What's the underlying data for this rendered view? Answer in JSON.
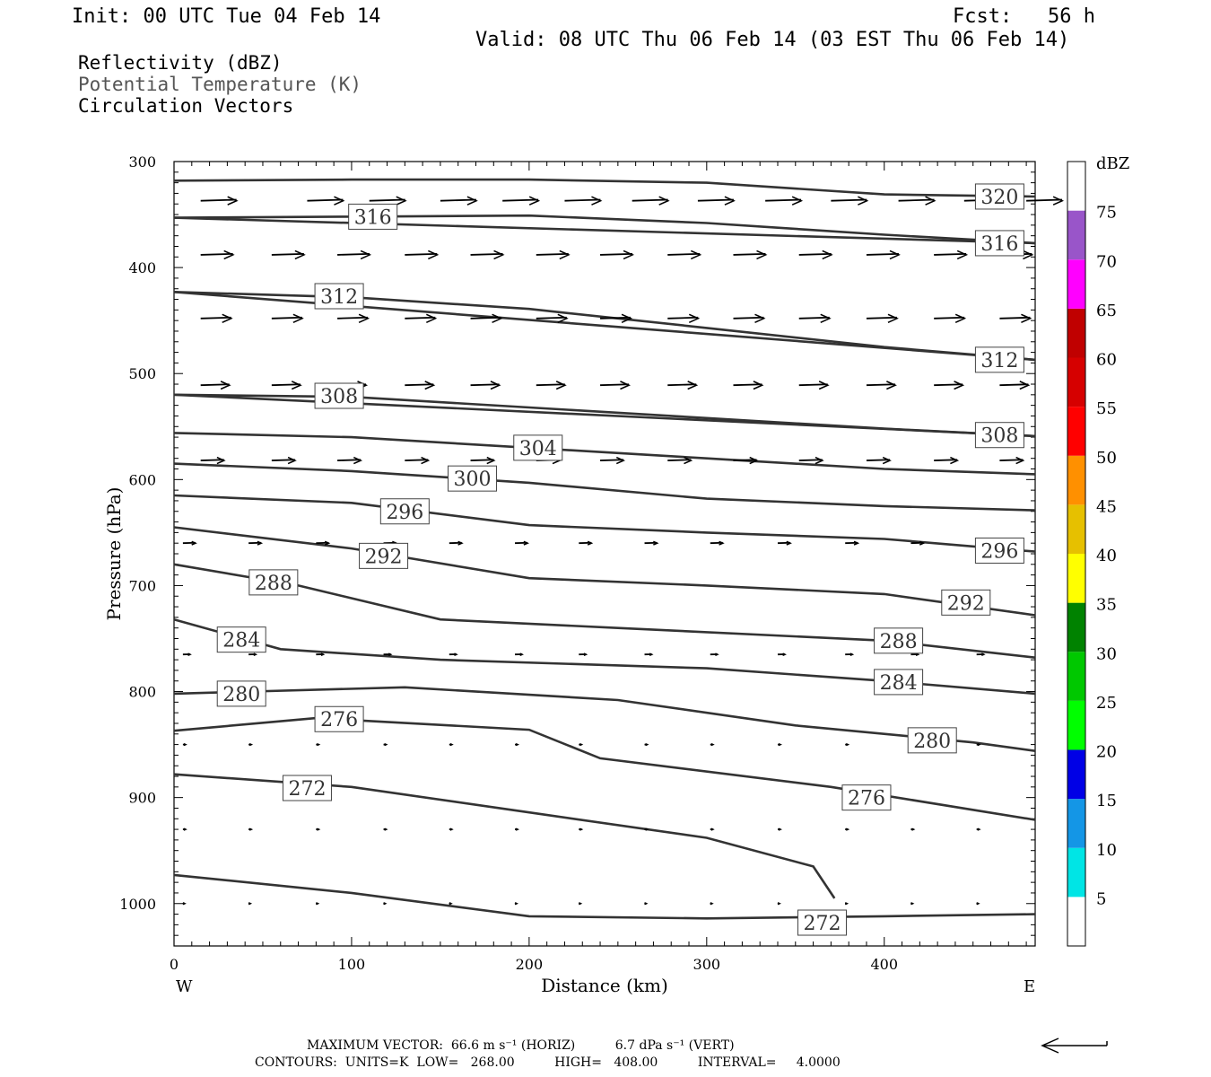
{
  "header": {
    "init": "Init: 00 UTC Tue 04 Feb 14",
    "fcst": "Fcst:   56 h",
    "valid": "Valid: 08 UTC Thu 06 Feb 14 (03 EST Thu 06 Feb 14)"
  },
  "fields": {
    "reflectivity": "Reflectivity (dBZ)",
    "theta": "Potential Temperature (K)",
    "vectors": "Circulation Vectors"
  },
  "footer": {
    "max_vector": "MAXIMUM VECTOR:  66.6 m s⁻¹ (HORIZ)          6.7 dPa s⁻¹ (VERT)",
    "contours": "CONTOURS:  UNITS=K  LOW=   268.00          HIGH=   408.00          INTERVAL=     4.0000"
  },
  "chart_data": {
    "type": "line",
    "xlabel": "Distance (km)",
    "ylabel": "Pressure (hPa)",
    "xlim": [
      0,
      485
    ],
    "ylim": [
      1040,
      300
    ],
    "x_ticks": [
      0,
      100,
      200,
      300,
      400
    ],
    "y_ticks": [
      300,
      400,
      500,
      600,
      700,
      800,
      900,
      1000
    ],
    "x_left_label": "W",
    "x_right_label": "E",
    "colorbar": {
      "unit": "dBZ",
      "levels": [
        5,
        10,
        15,
        20,
        25,
        30,
        35,
        40,
        45,
        50,
        55,
        60,
        65,
        70,
        75
      ],
      "colors": [
        "#ffffff",
        "#00e5e5",
        "#1496e6",
        "#0000e6",
        "#00ff00",
        "#00c800",
        "#008200",
        "#ffff00",
        "#e6c000",
        "#ff9000",
        "#ff0000",
        "#d60000",
        "#c00000",
        "#ff00ff",
        "#9955c9",
        "#ffffff"
      ]
    },
    "series": [
      {
        "name": "320",
        "label_at": [
          465,
          333
        ],
        "points": [
          [
            0,
            318
          ],
          [
            100,
            317
          ],
          [
            200,
            317
          ],
          [
            300,
            320
          ],
          [
            400,
            331
          ],
          [
            485,
            333
          ]
        ]
      },
      {
        "name": "316",
        "label_at": [
          112,
          352
        ],
        "points": [
          [
            0,
            353
          ],
          [
            100,
            352
          ],
          [
            200,
            351
          ],
          [
            300,
            358
          ],
          [
            400,
            369
          ],
          [
            485,
            377
          ]
        ]
      },
      {
        "name": "316",
        "label_at": [
          465,
          377
        ],
        "points": [
          [
            0,
            353
          ],
          [
            485,
            377
          ]
        ]
      },
      {
        "name": "312",
        "label_at": [
          93,
          427
        ],
        "points": [
          [
            0,
            423
          ],
          [
            100,
            428
          ],
          [
            200,
            439
          ],
          [
            300,
            457
          ],
          [
            400,
            475
          ],
          [
            485,
            487
          ]
        ]
      },
      {
        "name": "312",
        "label_at": [
          465,
          487
        ],
        "points": [
          [
            0,
            423
          ],
          [
            485,
            487
          ]
        ]
      },
      {
        "name": "308",
        "label_at": [
          93,
          521
        ],
        "points": [
          [
            0,
            520
          ],
          [
            100,
            522
          ],
          [
            200,
            532
          ],
          [
            300,
            542
          ],
          [
            400,
            552
          ],
          [
            485,
            559
          ]
        ]
      },
      {
        "name": "308",
        "label_at": [
          465,
          558
        ],
        "points": [
          [
            0,
            520
          ],
          [
            485,
            559
          ]
        ]
      },
      {
        "name": "304",
        "label_at": [
          205,
          570
        ],
        "points": [
          [
            0,
            556
          ],
          [
            100,
            560
          ],
          [
            200,
            570
          ],
          [
            300,
            580
          ],
          [
            400,
            590
          ],
          [
            485,
            595
          ]
        ]
      },
      {
        "name": "300",
        "label_at": [
          168,
          599
        ],
        "points": [
          [
            0,
            585
          ],
          [
            100,
            592
          ],
          [
            200,
            603
          ],
          [
            300,
            618
          ],
          [
            400,
            625
          ],
          [
            485,
            629
          ]
        ]
      },
      {
        "name": "296",
        "label_at": [
          130,
          630
        ],
        "points": [
          [
            0,
            615
          ],
          [
            100,
            622
          ],
          [
            200,
            643
          ],
          [
            300,
            650
          ],
          [
            400,
            656
          ],
          [
            485,
            668
          ]
        ]
      },
      {
        "name": "296",
        "label_at": [
          465,
          667
        ]
      },
      {
        "name": "292",
        "label_at": [
          118,
          672
        ],
        "points": [
          [
            0,
            645
          ],
          [
            100,
            665
          ],
          [
            200,
            693
          ],
          [
            300,
            700
          ],
          [
            400,
            708
          ],
          [
            485,
            728
          ]
        ]
      },
      {
        "name": "292",
        "label_at": [
          446,
          716
        ]
      },
      {
        "name": "288",
        "label_at": [
          56,
          697
        ],
        "points": [
          [
            0,
            680
          ],
          [
            70,
            700
          ],
          [
            150,
            732
          ],
          [
            250,
            740
          ],
          [
            400,
            752
          ],
          [
            485,
            768
          ]
        ]
      },
      {
        "name": "288",
        "label_at": [
          408,
          752
        ]
      },
      {
        "name": "284",
        "label_at": [
          38,
          751
        ],
        "points": [
          [
            0,
            732
          ],
          [
            60,
            760
          ],
          [
            150,
            770
          ],
          [
            300,
            778
          ],
          [
            400,
            790
          ],
          [
            485,
            802
          ]
        ]
      },
      {
        "name": "284",
        "label_at": [
          408,
          791
        ]
      },
      {
        "name": "280",
        "label_at": [
          38,
          802
        ],
        "points": [
          [
            0,
            802
          ],
          [
            130,
            796
          ],
          [
            250,
            808
          ],
          [
            350,
            832
          ],
          [
            450,
            848
          ],
          [
            485,
            856
          ]
        ]
      },
      {
        "name": "280",
        "label_at": [
          427,
          846
        ]
      },
      {
        "name": "276",
        "label_at": [
          93,
          826
        ],
        "points": [
          [
            0,
            837
          ],
          [
            80,
            825
          ],
          [
            200,
            836
          ],
          [
            240,
            863
          ],
          [
            370,
            890
          ],
          [
            485,
            921
          ]
        ]
      },
      {
        "name": "276",
        "label_at": [
          390,
          900
        ]
      },
      {
        "name": "272",
        "label_at": [
          75,
          891
        ],
        "points": [
          [
            0,
            878
          ],
          [
            100,
            890
          ],
          [
            200,
            914
          ],
          [
            300,
            938
          ],
          [
            360,
            965
          ],
          [
            372,
            995
          ]
        ]
      },
      {
        "name": "272",
        "label_at": [
          365,
          1018
        ],
        "points": [
          [
            0,
            973
          ],
          [
            100,
            990
          ],
          [
            200,
            1012
          ],
          [
            300,
            1014
          ],
          [
            400,
            1012
          ],
          [
            485,
            1010
          ]
        ]
      }
    ],
    "vector_rows": [
      {
        "p": 337,
        "x": [
          15,
          75,
          110,
          150,
          185,
          220,
          258,
          295,
          333,
          370,
          408,
          445,
          480
        ],
        "len": 40
      },
      {
        "p": 388,
        "x": [
          15,
          55,
          92,
          130,
          167,
          204,
          240,
          278,
          315,
          352,
          390,
          428,
          465
        ],
        "len": 36
      },
      {
        "p": 448,
        "x": [
          15,
          55,
          92,
          130,
          167,
          204,
          240,
          278,
          315,
          352,
          390,
          428,
          465
        ],
        "len": 34
      },
      {
        "p": 511,
        "x": [
          15,
          55,
          92,
          130,
          167,
          204,
          240,
          278,
          315,
          352,
          390,
          428,
          465
        ],
        "len": 32
      },
      {
        "p": 582,
        "x": [
          15,
          55,
          92,
          130,
          167,
          204,
          240,
          278,
          315,
          352,
          390,
          428,
          465
        ],
        "len": 26
      },
      {
        "p": 660,
        "x": [
          5,
          42,
          80,
          118,
          155,
          192,
          228,
          265,
          302,
          340,
          378,
          415,
          452
        ],
        "len": 14
      },
      {
        "p": 765,
        "x": [
          5,
          42,
          80,
          118,
          155,
          192,
          228,
          265,
          302,
          340,
          378,
          415,
          452
        ],
        "len": 8
      },
      {
        "p": 850,
        "x": [
          5,
          42,
          80,
          118,
          155,
          192,
          228,
          265,
          302,
          340,
          378,
          415,
          452
        ],
        "len": 3
      },
      {
        "p": 930,
        "x": [
          5,
          42,
          80,
          118,
          155,
          192,
          228,
          265,
          302,
          340,
          378,
          415,
          452
        ],
        "len": 3
      },
      {
        "p": 1000,
        "x": [
          5,
          42,
          80,
          118,
          155,
          192,
          228,
          265,
          302,
          340,
          378,
          415,
          452
        ],
        "len": 2
      }
    ]
  }
}
